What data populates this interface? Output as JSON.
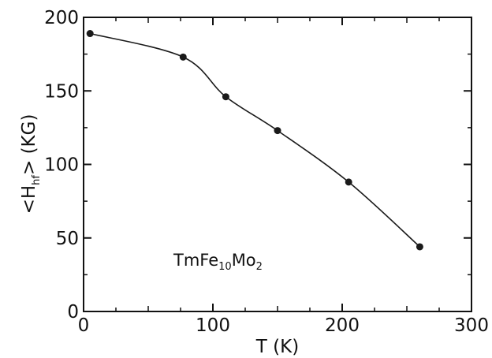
{
  "chart_data": {
    "type": "line",
    "x": [
      5,
      77,
      110,
      150,
      205,
      260
    ],
    "series": [
      {
        "values": [
          189,
          173,
          146,
          123,
          88,
          44
        ]
      }
    ],
    "xlim": [
      0,
      300
    ],
    "ylim": [
      0,
      200
    ],
    "xticks": [
      "0",
      "100",
      "200",
      "300"
    ],
    "yticks": [
      "0",
      "50",
      "100",
      "150",
      "200"
    ],
    "xlabel": "T (K)",
    "ylabel": {
      "prefix": "<H",
      "sub": "hf",
      "suffix": "> (KG)"
    },
    "annotation": {
      "base1": "TmFe",
      "sub1": "10",
      "base2": "Mo",
      "sub2": "2"
    },
    "grid": false,
    "colors": {
      "line": "#1a1a1a",
      "marker": "#1a1a1a",
      "axis": "#111111"
    }
  }
}
